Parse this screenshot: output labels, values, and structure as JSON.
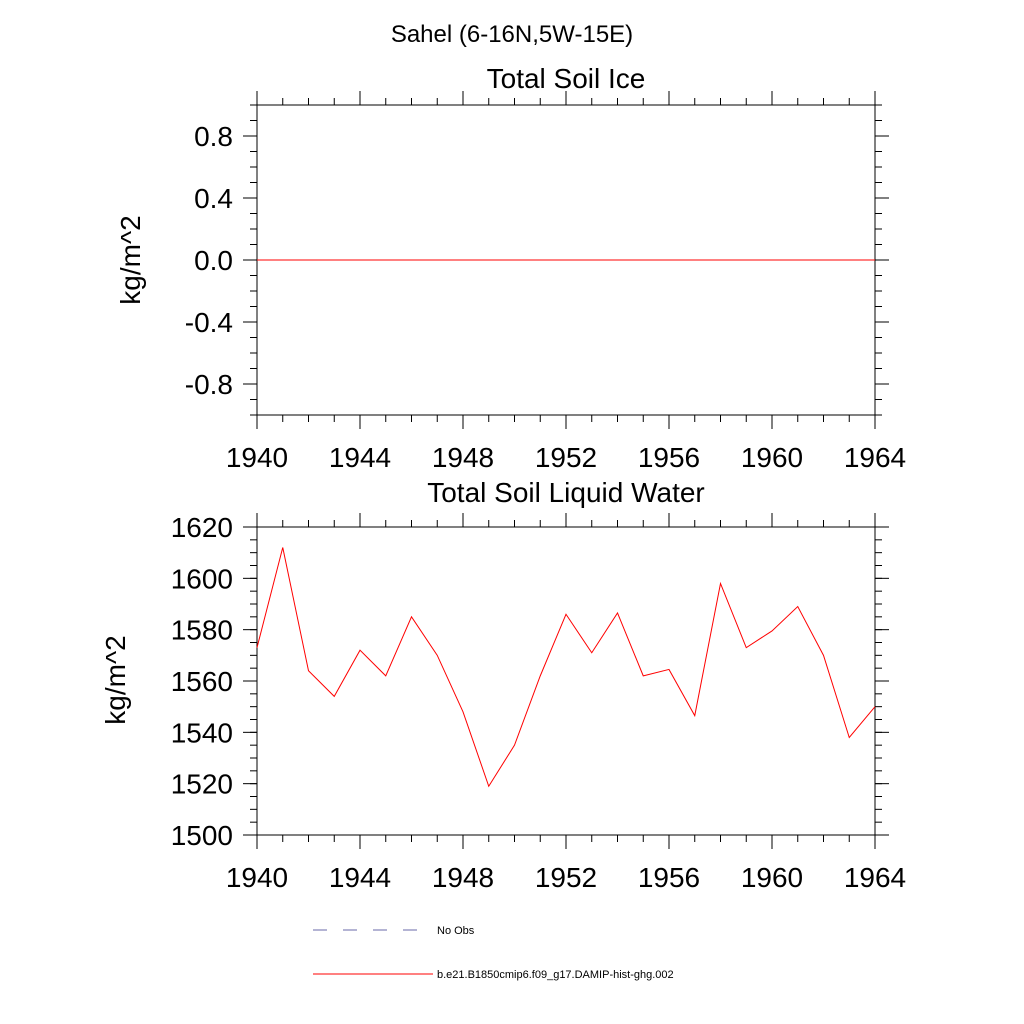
{
  "suptitle": "Sahel (6-16N,5W-15E)",
  "chart_data": [
    {
      "type": "line",
      "title": "Total Soil Ice",
      "xlabel": "",
      "ylabel": "kg/m^2",
      "xlim": [
        1940,
        1964
      ],
      "ylim": [
        -1.0,
        1.0
      ],
      "xticks": [
        "1940",
        "1944",
        "1948",
        "1952",
        "1956",
        "1960",
        "1964"
      ],
      "yticks": [
        "0.8",
        "0.4",
        "0.0",
        "-0.4",
        "-0.8"
      ],
      "x": [
        1940,
        1941,
        1942,
        1943,
        1944,
        1945,
        1946,
        1947,
        1948,
        1949,
        1950,
        1951,
        1952,
        1953,
        1954,
        1955,
        1956,
        1957,
        1958,
        1959,
        1960,
        1961,
        1962,
        1963,
        1964
      ],
      "series": [
        {
          "color": "#ff0000",
          "values": [
            0,
            0,
            0,
            0,
            0,
            0,
            0,
            0,
            0,
            0,
            0,
            0,
            0,
            0,
            0,
            0,
            0,
            0,
            0,
            0,
            0,
            0,
            0,
            0,
            0
          ]
        }
      ],
      "grid": false
    },
    {
      "type": "line",
      "title": "Total Soil Liquid Water",
      "xlabel": "",
      "ylabel": "kg/m^2",
      "xlim": [
        1940,
        1964
      ],
      "ylim": [
        1500,
        1620
      ],
      "xticks": [
        "1940",
        "1944",
        "1948",
        "1952",
        "1956",
        "1960",
        "1964"
      ],
      "yticks": [
        "1620",
        "1600",
        "1580",
        "1560",
        "1540",
        "1520",
        "1500"
      ],
      "x": [
        1940,
        1941,
        1942,
        1943,
        1944,
        1945,
        1946,
        1947,
        1948,
        1949,
        1950,
        1951,
        1952,
        1953,
        1954,
        1955,
        1956,
        1957,
        1958,
        1959,
        1960,
        1961,
        1962,
        1963,
        1964
      ],
      "series": [
        {
          "color": "#ff0000",
          "values": [
            1573,
            1612,
            1564,
            1554,
            1572,
            1562,
            1585,
            1570,
            1548,
            1519,
            1535,
            1562,
            1586,
            1571,
            1586.5,
            1562,
            1564.5,
            1546.5,
            1598,
            1573,
            1579.5,
            1589,
            1570,
            1538,
            1550
          ]
        }
      ],
      "grid": false
    }
  ],
  "legend": {
    "placement": "bottom",
    "entries": [
      {
        "label": "No Obs",
        "color": "#6a6aa8",
        "style": "dashed"
      },
      {
        "label": "b.e21.B1850cmip6.f09_g17.DAMIP-hist-ghg.002",
        "color": "#ff0000",
        "style": "solid"
      }
    ]
  }
}
